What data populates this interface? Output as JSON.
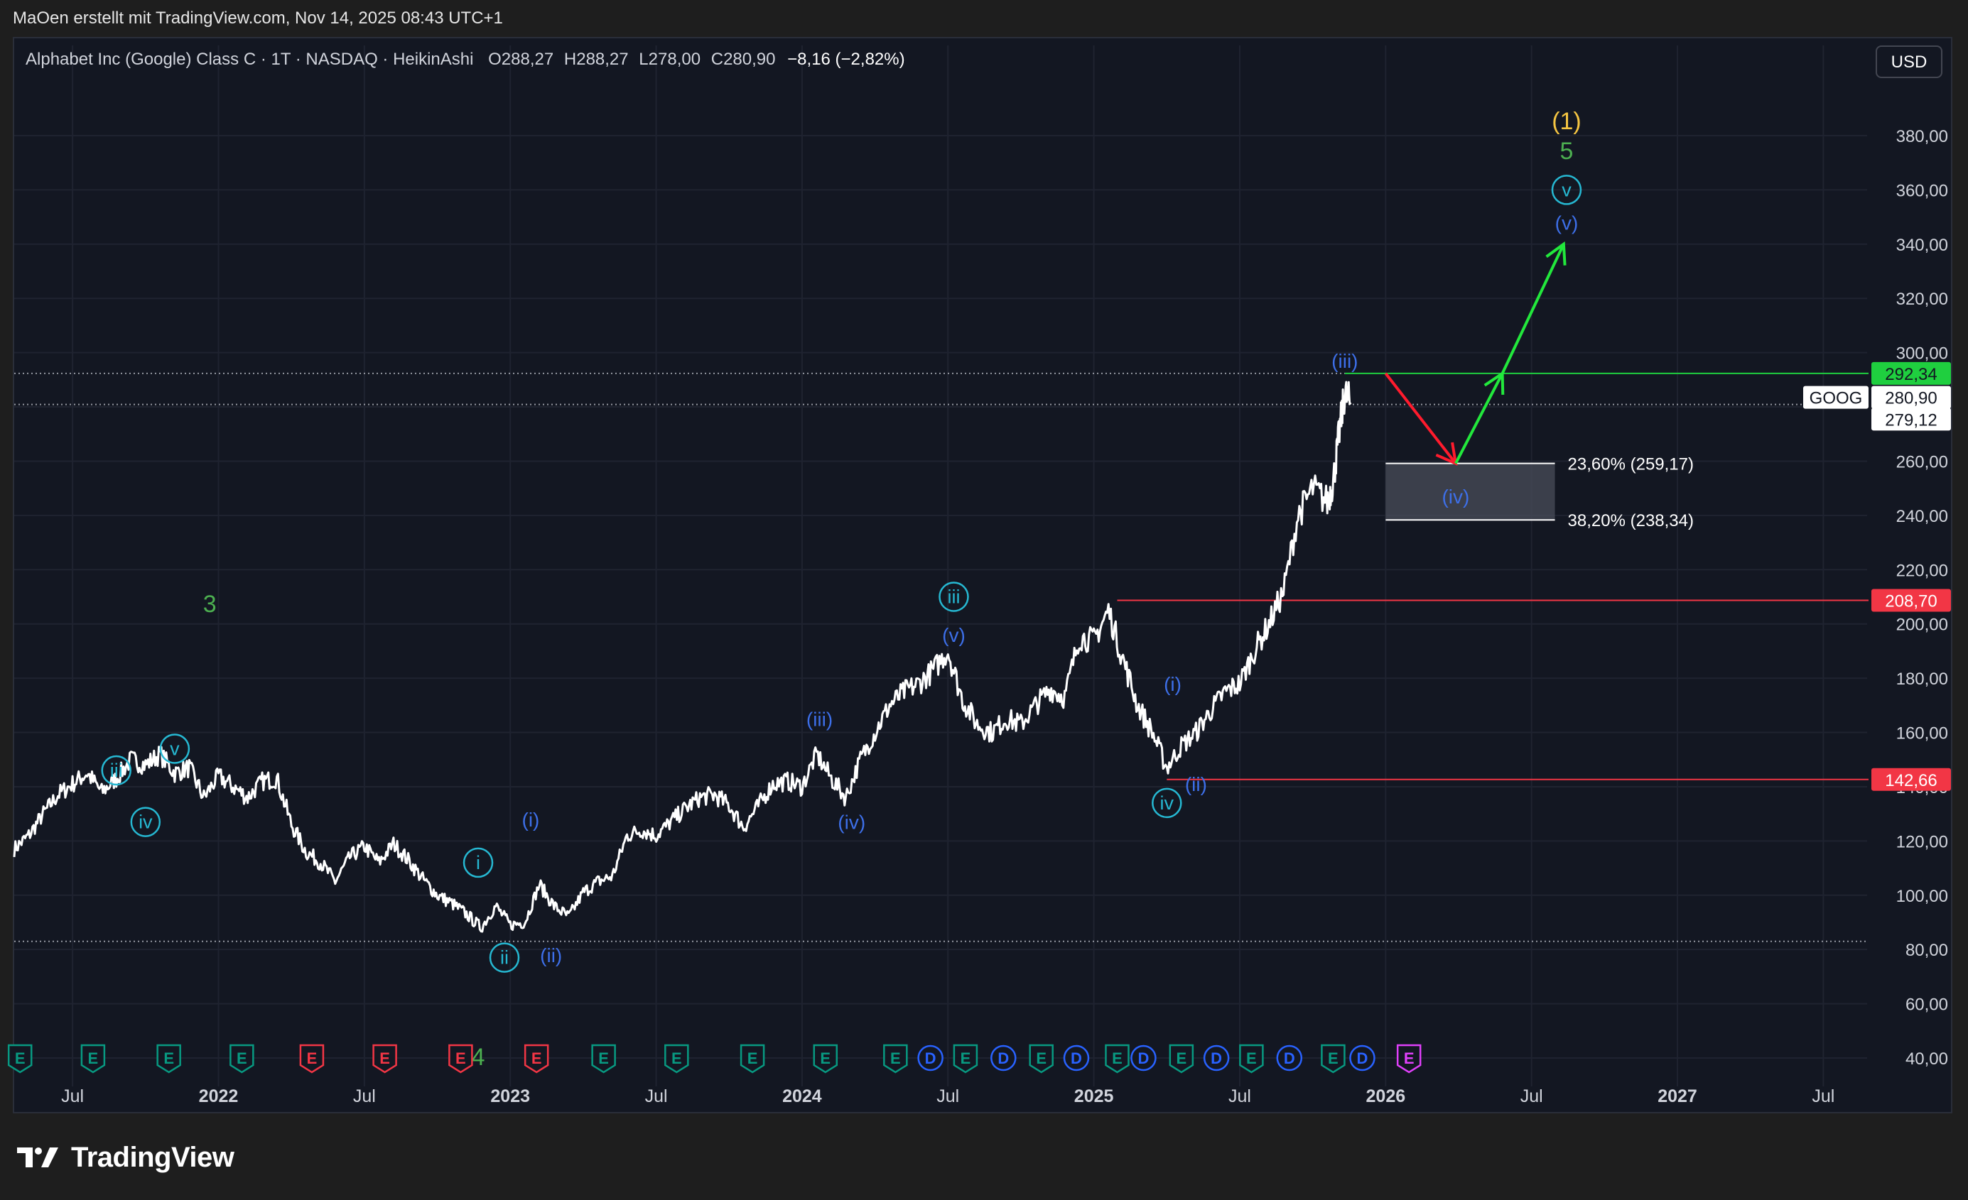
{
  "header": {
    "attribution": "MaOen erstellt mit TradingView.com, Nov 14, 2025 08:43 UTC+1"
  },
  "legend": {
    "symbol": "Alphabet Inc (Google) Class C · 1T · NASDAQ · HeikinAshi",
    "open_label": "O",
    "open": "288,27",
    "high_label": "H",
    "high": "288,27",
    "low_label": "L",
    "low": "278,00",
    "close_label": "C",
    "close": "280,90",
    "change": "−8,16 (−2,82%)"
  },
  "currency_button": "USD",
  "footer": {
    "brand": "TradingView"
  },
  "colors": {
    "background": "#131722",
    "price_line": "#ffffff",
    "green_level": "#1fcf3f",
    "red_level": "#f23645",
    "wave_blue": "#3d6fe8",
    "wave_cyan": "#26b8d2",
    "wave_green": "#4caf50",
    "wave_yellow": "#f5c542",
    "arrow_red": "#ff1b2d",
    "arrow_green": "#22e83c",
    "event_earnings_green": "#089981",
    "event_earnings_red": "#f23645",
    "event_dividend_blue": "#2962ff",
    "event_magenta": "#e040fb"
  },
  "chart_data": {
    "type": "line",
    "title": "Alphabet Inc (Google) Class C",
    "price_style": "HeikinAshi",
    "ylim": [
      30,
      405
    ],
    "y_ticks": [
      40,
      60,
      80,
      100,
      120,
      140,
      160,
      180,
      200,
      220,
      240,
      260,
      280,
      300,
      320,
      340,
      360,
      380
    ],
    "y_tick_labels": [
      "40,00",
      "60,00",
      "80,00",
      "100,00",
      "120,00",
      "140,00",
      "160,00",
      "180,00",
      "200,00",
      "220,00",
      "240,00",
      "260,00",
      "280,00",
      "300,00",
      "320,00",
      "340,00",
      "360,00",
      "380,00"
    ],
    "x_ticks": [
      {
        "t": 2021.5,
        "label": "Jul",
        "bold": false
      },
      {
        "t": 2022.0,
        "label": "2022",
        "bold": true
      },
      {
        "t": 2022.5,
        "label": "Jul",
        "bold": false
      },
      {
        "t": 2023.0,
        "label": "2023",
        "bold": true
      },
      {
        "t": 2023.5,
        "label": "Jul",
        "bold": false
      },
      {
        "t": 2024.0,
        "label": "2024",
        "bold": true
      },
      {
        "t": 2024.5,
        "label": "Jul",
        "bold": false
      },
      {
        "t": 2025.0,
        "label": "2025",
        "bold": true
      },
      {
        "t": 2025.5,
        "label": "Jul",
        "bold": false
      },
      {
        "t": 2026.0,
        "label": "2026",
        "bold": true
      },
      {
        "t": 2026.5,
        "label": "Jul",
        "bold": false
      },
      {
        "t": 2027.0,
        "label": "2027",
        "bold": true
      },
      {
        "t": 2027.5,
        "label": "Jul",
        "bold": false
      }
    ],
    "xlim": [
      2021.3,
      2027.65
    ],
    "price_series": {
      "name": "GOOG",
      "points": [
        [
          2021.3,
          117
        ],
        [
          2021.35,
          122
        ],
        [
          2021.4,
          130
        ],
        [
          2021.45,
          137
        ],
        [
          2021.5,
          141
        ],
        [
          2021.55,
          145
        ],
        [
          2021.6,
          138
        ],
        [
          2021.65,
          143
        ],
        [
          2021.7,
          150
        ],
        [
          2021.75,
          148
        ],
        [
          2021.8,
          152
        ],
        [
          2021.85,
          145
        ],
        [
          2021.9,
          147
        ],
        [
          2021.95,
          136
        ],
        [
          2022.0,
          144
        ],
        [
          2022.05,
          140
        ],
        [
          2022.1,
          136
        ],
        [
          2022.15,
          142
        ],
        [
          2022.2,
          143
        ],
        [
          2022.25,
          126
        ],
        [
          2022.3,
          116
        ],
        [
          2022.35,
          112
        ],
        [
          2022.4,
          105
        ],
        [
          2022.45,
          114
        ],
        [
          2022.5,
          118
        ],
        [
          2022.55,
          112
        ],
        [
          2022.6,
          119
        ],
        [
          2022.65,
          113
        ],
        [
          2022.7,
          106
        ],
        [
          2022.75,
          100
        ],
        [
          2022.8,
          97
        ],
        [
          2022.85,
          93
        ],
        [
          2022.9,
          88
        ],
        [
          2022.95,
          96
        ],
        [
          2023.0,
          89
        ],
        [
          2023.05,
          90
        ],
        [
          2023.1,
          104
        ],
        [
          2023.15,
          96
        ],
        [
          2023.2,
          92
        ],
        [
          2023.25,
          101
        ],
        [
          2023.3,
          105
        ],
        [
          2023.35,
          107
        ],
        [
          2023.4,
          122
        ],
        [
          2023.45,
          124
        ],
        [
          2023.5,
          122
        ],
        [
          2023.55,
          127
        ],
        [
          2023.6,
          132
        ],
        [
          2023.65,
          136
        ],
        [
          2023.7,
          137
        ],
        [
          2023.75,
          133
        ],
        [
          2023.8,
          125
        ],
        [
          2023.85,
          133
        ],
        [
          2023.9,
          141
        ],
        [
          2023.95,
          142
        ],
        [
          2024.0,
          140
        ],
        [
          2024.05,
          152
        ],
        [
          2024.1,
          143
        ],
        [
          2024.15,
          136
        ],
        [
          2024.2,
          150
        ],
        [
          2024.25,
          160
        ],
        [
          2024.3,
          170
        ],
        [
          2024.35,
          175
        ],
        [
          2024.4,
          178
        ],
        [
          2024.45,
          183
        ],
        [
          2024.5,
          190
        ],
        [
          2024.55,
          172
        ],
        [
          2024.6,
          163
        ],
        [
          2024.65,
          160
        ],
        [
          2024.7,
          165
        ],
        [
          2024.75,
          163
        ],
        [
          2024.8,
          170
        ],
        [
          2024.85,
          176
        ],
        [
          2024.9,
          173
        ],
        [
          2024.95,
          195
        ],
        [
          2025.0,
          194
        ],
        [
          2025.05,
          205
        ],
        [
          2025.1,
          187
        ],
        [
          2025.15,
          170
        ],
        [
          2025.2,
          160
        ],
        [
          2025.25,
          147
        ],
        [
          2025.3,
          155
        ],
        [
          2025.35,
          160
        ],
        [
          2025.4,
          168
        ],
        [
          2025.45,
          175
        ],
        [
          2025.5,
          178
        ],
        [
          2025.55,
          190
        ],
        [
          2025.6,
          200
        ],
        [
          2025.65,
          212
        ],
        [
          2025.7,
          240
        ],
        [
          2025.75,
          250
        ],
        [
          2025.8,
          245
        ],
        [
          2025.82,
          252
        ],
        [
          2025.84,
          270
        ],
        [
          2025.86,
          285
        ],
        [
          2025.88,
          281
        ]
      ]
    },
    "current_price": 280.9,
    "symbol_tag": "GOOG",
    "price_labels": [
      {
        "value": 292.34,
        "text": "292,34",
        "style": "green"
      },
      {
        "value": 280.9,
        "text": "280,90",
        "style": "white"
      },
      {
        "value": 279.12,
        "text": "279,12",
        "style": "white"
      },
      {
        "value": 208.7,
        "text": "208,70",
        "style": "red"
      },
      {
        "value": 142.66,
        "text": "142,66",
        "style": "red"
      }
    ],
    "horizontal_levels": [
      {
        "value": 292.34,
        "from": 2025.86,
        "color": "green",
        "dashed": false
      },
      {
        "value": 280.9,
        "from": 2021.3,
        "color": "white",
        "dashed": true
      },
      {
        "value": 208.7,
        "from": 2025.08,
        "color": "red",
        "dashed": false
      },
      {
        "value": 142.66,
        "from": 2025.25,
        "color": "red",
        "dashed": false
      },
      {
        "value": 292.34,
        "from": 2021.3,
        "to": 2025.86,
        "color": "white",
        "dashed": true
      },
      {
        "value": 83.0,
        "from": 2021.3,
        "color": "white",
        "dashed": true
      }
    ],
    "fib_zone": {
      "x_from": 2026.0,
      "x_to": 2026.58,
      "levels": [
        {
          "value": 259.17,
          "text": "23,60% (259,17)"
        },
        {
          "value": 238.34,
          "text": "38,20% (238,34)"
        }
      ]
    },
    "arrows": [
      {
        "color": "red",
        "points": [
          [
            2026.0,
            292.34
          ],
          [
            2026.24,
            259.17
          ]
        ]
      },
      {
        "color": "green",
        "points": [
          [
            2026.24,
            259.17
          ],
          [
            2026.4,
            292.34
          ]
        ]
      },
      {
        "color": "green",
        "points": [
          [
            2026.4,
            292.34
          ],
          [
            2026.61,
            340
          ]
        ]
      }
    ],
    "wave_labels": [
      {
        "t": 2021.87,
        "v": 372,
        "text": "(1)",
        "color": "yellow",
        "circle": false,
        "_note": "moved below"
      },
      {
        "t": 2026.62,
        "v": 385,
        "text": "(1)",
        "color": "yellow",
        "circle": false
      },
      {
        "t": 2026.62,
        "v": 374,
        "text": "5",
        "color": "green",
        "circle": false
      },
      {
        "t": 2026.62,
        "v": 360,
        "text": "v",
        "color": "cyan",
        "circle": true
      },
      {
        "t": 2026.62,
        "v": 348,
        "text": "(v)",
        "color": "blue",
        "circle": false
      },
      {
        "t": 2025.86,
        "v": 297,
        "text": "(iii)",
        "color": "blue",
        "circle": false
      },
      {
        "t": 2026.24,
        "v": 247,
        "text": "(iv)",
        "color": "blue",
        "circle": false
      },
      {
        "t": 2024.52,
        "v": 210,
        "text": "iii",
        "color": "cyan",
        "circle": true
      },
      {
        "t": 2024.52,
        "v": 196,
        "text": "(v)",
        "color": "blue",
        "circle": false
      },
      {
        "t": 2024.06,
        "v": 165,
        "text": "(iii)",
        "color": "blue",
        "circle": false
      },
      {
        "t": 2024.17,
        "v": 127,
        "text": "(iv)",
        "color": "blue",
        "circle": false
      },
      {
        "t": 2025.27,
        "v": 178,
        "text": "(i)",
        "color": "blue",
        "circle": false
      },
      {
        "t": 2025.35,
        "v": 141,
        "text": "(ii)",
        "color": "blue",
        "circle": false
      },
      {
        "t": 2025.25,
        "v": 134,
        "text": "iv",
        "color": "cyan",
        "circle": true
      },
      {
        "t": 2021.97,
        "v": 207,
        "text": "3",
        "color": "green",
        "circle": false
      },
      {
        "t": 2021.85,
        "v": 154,
        "text": "v",
        "color": "cyan",
        "circle": true
      },
      {
        "t": 2021.65,
        "v": 146,
        "text": "iii",
        "color": "cyan",
        "circle": true
      },
      {
        "t": 2021.75,
        "v": 127,
        "text": "iv",
        "color": "cyan",
        "circle": true
      },
      {
        "t": 2022.89,
        "v": 40,
        "text": "4",
        "color": "green",
        "circle": false
      },
      {
        "t": 2022.98,
        "v": 77,
        "text": "ii",
        "color": "cyan",
        "circle": true
      },
      {
        "t": 2023.14,
        "v": 78,
        "text": "(ii)",
        "color": "blue",
        "circle": false
      },
      {
        "t": 2022.89,
        "v": 112,
        "text": "i",
        "color": "cyan",
        "circle": true
      },
      {
        "t": 2023.07,
        "v": 128,
        "text": "(i)",
        "color": "blue",
        "circle": false
      }
    ],
    "events": [
      {
        "t": 2021.32,
        "type": "E",
        "color": "green"
      },
      {
        "t": 2021.57,
        "type": "E",
        "color": "green"
      },
      {
        "t": 2021.83,
        "type": "E",
        "color": "green"
      },
      {
        "t": 2022.08,
        "type": "E",
        "color": "green"
      },
      {
        "t": 2022.32,
        "type": "E",
        "color": "red"
      },
      {
        "t": 2022.57,
        "type": "E",
        "color": "red"
      },
      {
        "t": 2022.83,
        "type": "E",
        "color": "red"
      },
      {
        "t": 2023.09,
        "type": "E",
        "color": "red"
      },
      {
        "t": 2023.32,
        "type": "E",
        "color": "green"
      },
      {
        "t": 2023.57,
        "type": "E",
        "color": "green"
      },
      {
        "t": 2023.83,
        "type": "E",
        "color": "green"
      },
      {
        "t": 2024.08,
        "type": "E",
        "color": "green"
      },
      {
        "t": 2024.32,
        "type": "E",
        "color": "green"
      },
      {
        "t": 2024.44,
        "type": "D",
        "color": "blue"
      },
      {
        "t": 2024.56,
        "type": "E",
        "color": "green"
      },
      {
        "t": 2024.69,
        "type": "D",
        "color": "blue"
      },
      {
        "t": 2024.82,
        "type": "E",
        "color": "green"
      },
      {
        "t": 2024.94,
        "type": "D",
        "color": "blue"
      },
      {
        "t": 2025.08,
        "type": "E",
        "color": "green"
      },
      {
        "t": 2025.17,
        "type": "D",
        "color": "blue"
      },
      {
        "t": 2025.3,
        "type": "E",
        "color": "green"
      },
      {
        "t": 2025.42,
        "type": "D",
        "color": "blue"
      },
      {
        "t": 2025.54,
        "type": "E",
        "color": "green"
      },
      {
        "t": 2025.67,
        "type": "D",
        "color": "blue"
      },
      {
        "t": 2025.82,
        "type": "E",
        "color": "green"
      },
      {
        "t": 2025.92,
        "type": "D",
        "color": "blue"
      },
      {
        "t": 2026.08,
        "type": "E",
        "color": "magenta"
      }
    ]
  }
}
